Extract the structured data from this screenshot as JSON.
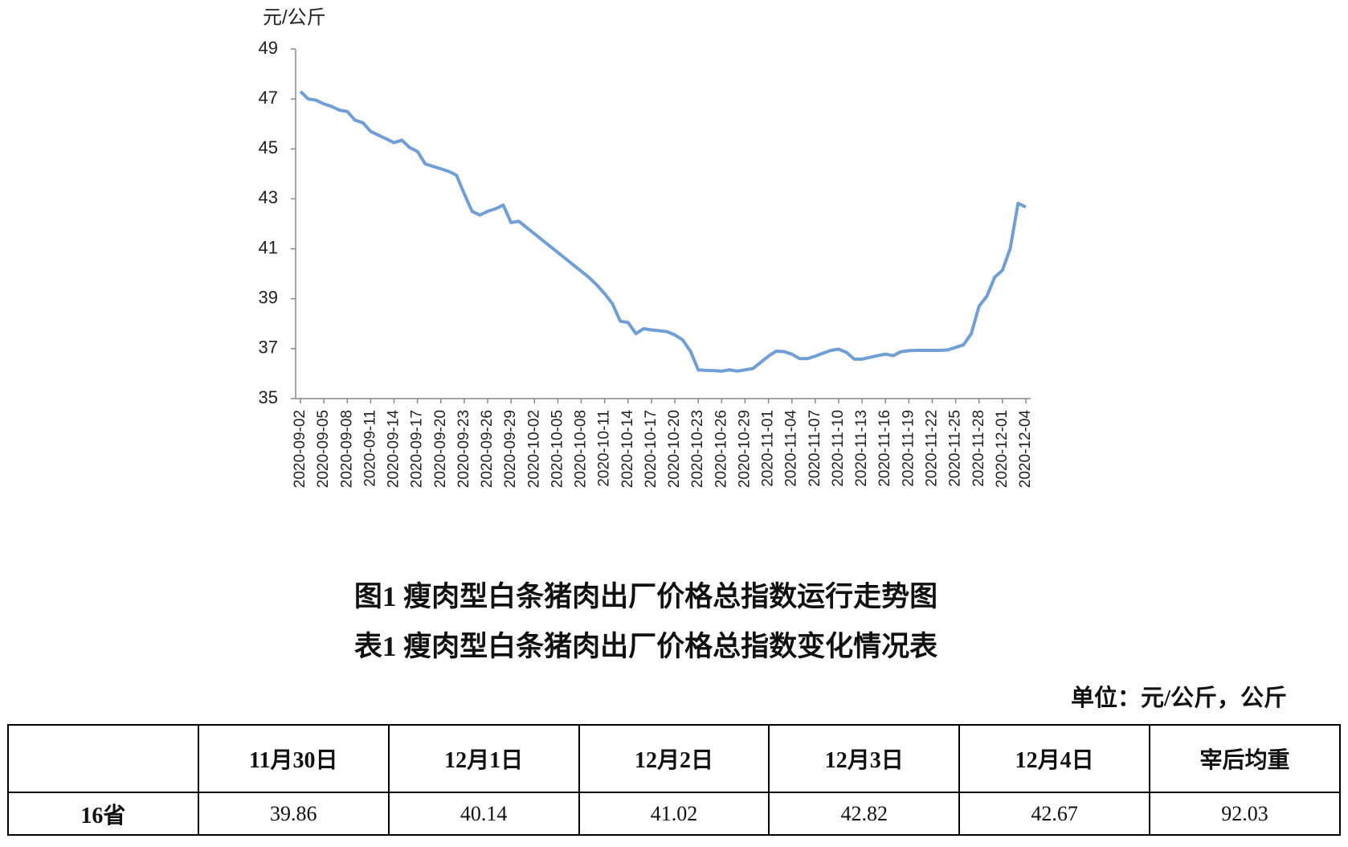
{
  "chart_data": {
    "type": "line",
    "y_axis_label": "元/公斤",
    "categories": [
      "2020-09-02",
      null,
      null,
      "2020-09-05",
      null,
      null,
      "2020-09-08",
      null,
      null,
      "2020-09-11",
      null,
      null,
      "2020-09-14",
      null,
      null,
      "2020-09-17",
      null,
      null,
      "2020-09-20",
      null,
      null,
      "2020-09-23",
      null,
      null,
      "2020-09-26",
      null,
      null,
      "2020-09-29",
      null,
      null,
      "2020-10-02",
      null,
      null,
      "2020-10-05",
      null,
      null,
      "2020-10-08",
      null,
      null,
      "2020-10-11",
      null,
      null,
      "2020-10-14",
      null,
      null,
      "2020-10-17",
      null,
      null,
      "2020-10-20",
      null,
      null,
      "2020-10-23",
      null,
      null,
      "2020-10-26",
      null,
      null,
      "2020-10-29",
      null,
      null,
      "2020-11-01",
      null,
      null,
      "2020-11-04",
      null,
      null,
      "2020-11-07",
      null,
      null,
      "2020-11-10",
      null,
      null,
      "2020-11-13",
      null,
      null,
      "2020-11-16",
      null,
      null,
      "2020-11-19",
      null,
      null,
      "2020-11-22",
      null,
      null,
      "2020-11-25",
      null,
      null,
      "2020-11-28",
      null,
      null,
      "2020-12-01",
      null,
      null,
      "2020-12-04"
    ],
    "values": [
      47.3,
      47.0,
      46.95,
      46.8,
      46.7,
      46.55,
      46.5,
      46.15,
      46.05,
      45.7,
      45.55,
      45.4,
      45.25,
      45.35,
      45.05,
      44.9,
      44.4,
      44.3,
      44.2,
      44.1,
      43.95,
      43.2,
      42.5,
      42.35,
      42.5,
      42.6,
      42.75,
      42.05,
      42.1,
      41.85,
      41.6,
      41.35,
      41.1,
      40.85,
      40.6,
      40.35,
      40.1,
      39.85,
      39.55,
      39.2,
      38.8,
      38.1,
      38.05,
      37.6,
      37.8,
      37.75,
      37.72,
      37.68,
      37.55,
      37.35,
      36.9,
      36.15,
      36.13,
      36.12,
      36.1,
      36.15,
      36.1,
      36.15,
      36.2,
      36.45,
      36.7,
      36.9,
      36.88,
      36.78,
      36.6,
      36.6,
      36.7,
      36.82,
      36.93,
      36.98,
      36.85,
      36.58,
      36.58,
      36.65,
      36.72,
      36.78,
      36.72,
      36.88,
      36.92,
      36.93,
      36.93,
      36.93,
      36.93,
      36.95,
      37.05,
      37.15,
      37.6,
      38.7,
      39.1,
      39.86,
      40.14,
      41.02,
      42.82,
      42.67
    ],
    "color": "#6f9fd6",
    "ylim": [
      35,
      49
    ],
    "yticks": [
      35,
      37,
      39,
      41,
      43,
      45,
      47,
      49
    ],
    "grid": false
  },
  "figure_caption": "图1 瘦肉型白条猪肉出厂价格总指数运行走势图",
  "table_caption": "表1 瘦肉型白条猪肉出厂价格总指数变化情况表",
  "unit": "单位：元/公斤，公斤",
  "table": {
    "header": [
      "11月30日",
      "12月1日",
      "12月2日",
      "12月3日",
      "12月4日",
      "宰后均重"
    ],
    "rows": [
      [
        "16省",
        39.86,
        40.14,
        41.02,
        42.82,
        42.67,
        92.03
      ]
    ]
  }
}
